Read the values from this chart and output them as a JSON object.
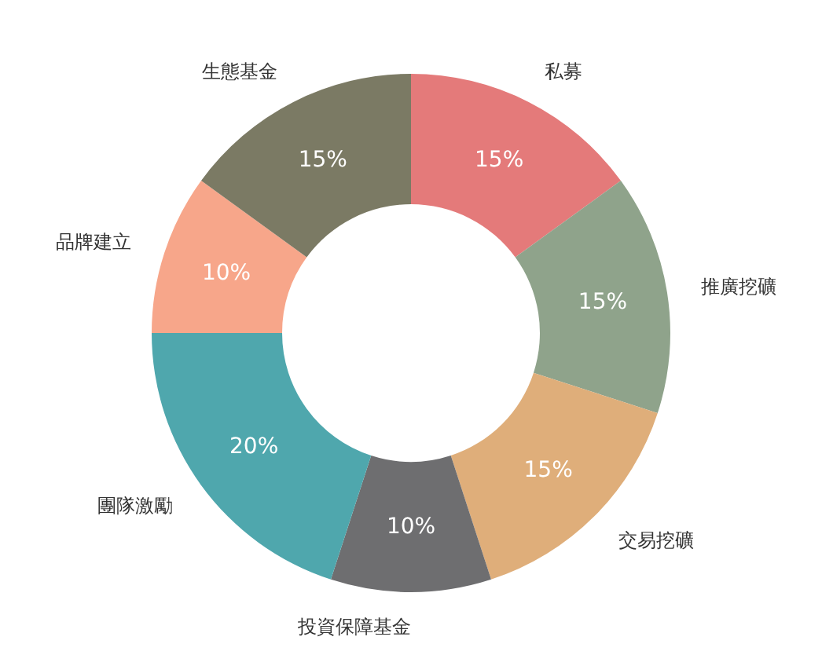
{
  "chart_data": {
    "type": "donut",
    "categories": [
      "私募",
      "推廣挖礦",
      "交易挖礦",
      "投資保障基金",
      "團隊激勵",
      "品牌建立",
      "生態基金"
    ],
    "values": [
      15,
      15,
      15,
      10,
      20,
      10,
      15
    ],
    "value_labels": [
      "15%",
      "15%",
      "15%",
      "10%",
      "20%",
      "10%",
      "15%"
    ],
    "colors": [
      "#e47a7a",
      "#8fa38b",
      "#dfae7a",
      "#6e6e70",
      "#4fa7ad",
      "#f7a68a",
      "#7b7a64"
    ],
    "legend": false
  }
}
